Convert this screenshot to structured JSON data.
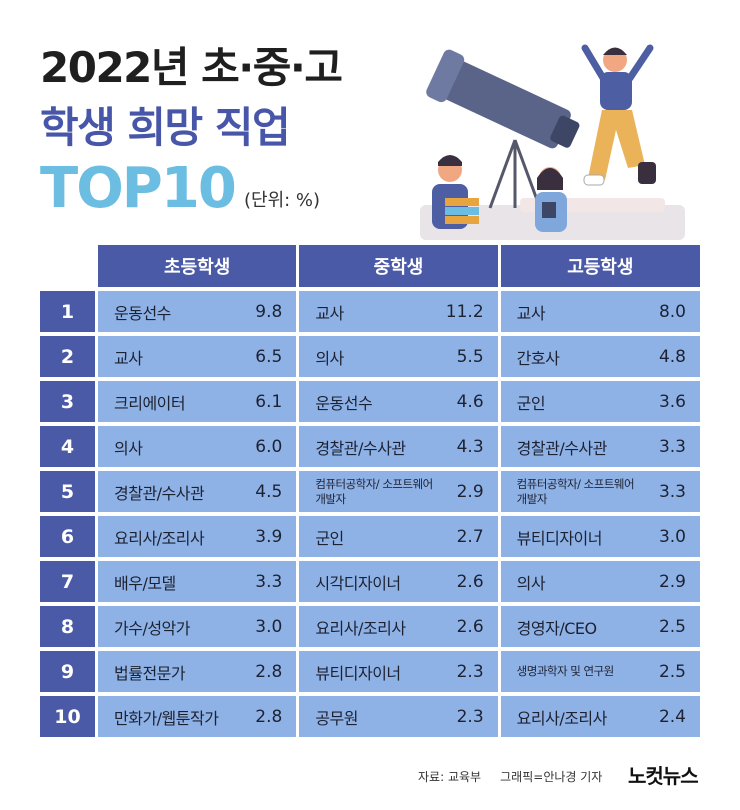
{
  "chart_data": {
    "type": "table",
    "title_line1": "2022년 초·중·고",
    "title_line2": "학생 희망 직업",
    "title_line3": "TOP10",
    "unit": "(단위: %)",
    "columns": [
      "초등학생",
      "중학생",
      "고등학생"
    ],
    "rows": [
      {
        "rank": "1",
        "cells": [
          {
            "job": "운동선수",
            "value": "9.8"
          },
          {
            "job": "교사",
            "value": "11.2"
          },
          {
            "job": "교사",
            "value": "8.0"
          }
        ]
      },
      {
        "rank": "2",
        "cells": [
          {
            "job": "교사",
            "value": "6.5"
          },
          {
            "job": "의사",
            "value": "5.5"
          },
          {
            "job": "간호사",
            "value": "4.8"
          }
        ]
      },
      {
        "rank": "3",
        "cells": [
          {
            "job": "크리에이터",
            "value": "6.1"
          },
          {
            "job": "운동선수",
            "value": "4.6"
          },
          {
            "job": "군인",
            "value": "3.6"
          }
        ]
      },
      {
        "rank": "4",
        "cells": [
          {
            "job": "의사",
            "value": "6.0"
          },
          {
            "job": "경찰관/수사관",
            "value": "4.3"
          },
          {
            "job": "경찰관/수사관",
            "value": "3.3"
          }
        ]
      },
      {
        "rank": "5",
        "cells": [
          {
            "job": "경찰관/수사관",
            "value": "4.5"
          },
          {
            "job": "컴퓨터공학자/ 소프트웨어개발자",
            "value": "2.9"
          },
          {
            "job": "컴퓨터공학자/ 소프트웨어개발자",
            "value": "3.3"
          }
        ]
      },
      {
        "rank": "6",
        "cells": [
          {
            "job": "요리사/조리사",
            "value": "3.9"
          },
          {
            "job": "군인",
            "value": "2.7"
          },
          {
            "job": "뷰티디자이너",
            "value": "3.0"
          }
        ]
      },
      {
        "rank": "7",
        "cells": [
          {
            "job": "배우/모델",
            "value": "3.3"
          },
          {
            "job": "시각디자이너",
            "value": "2.6"
          },
          {
            "job": "의사",
            "value": "2.9"
          }
        ]
      },
      {
        "rank": "8",
        "cells": [
          {
            "job": "가수/성악가",
            "value": "3.0"
          },
          {
            "job": "요리사/조리사",
            "value": "2.6"
          },
          {
            "job": "경영자/CEO",
            "value": "2.5"
          }
        ]
      },
      {
        "rank": "9",
        "cells": [
          {
            "job": "법률전문가",
            "value": "2.8"
          },
          {
            "job": "뷰티디자이너",
            "value": "2.3"
          },
          {
            "job": "생명과학자 및 연구원",
            "value": "2.5"
          }
        ]
      },
      {
        "rank": "10",
        "cells": [
          {
            "job": "만화가/웹툰작가",
            "value": "2.8"
          },
          {
            "job": "공무원",
            "value": "2.3"
          },
          {
            "job": "요리사/조리사",
            "value": "2.4"
          }
        ]
      }
    ],
    "colors": {
      "header": "#4b5aa6",
      "cell": "#8fb2e6",
      "title_accent": "#4756a8",
      "top_accent": "#6bbde2"
    }
  },
  "footer": {
    "source": "자료: 교육부",
    "credit": "그래픽=안나경 기자",
    "logo": "노컷뉴스"
  }
}
